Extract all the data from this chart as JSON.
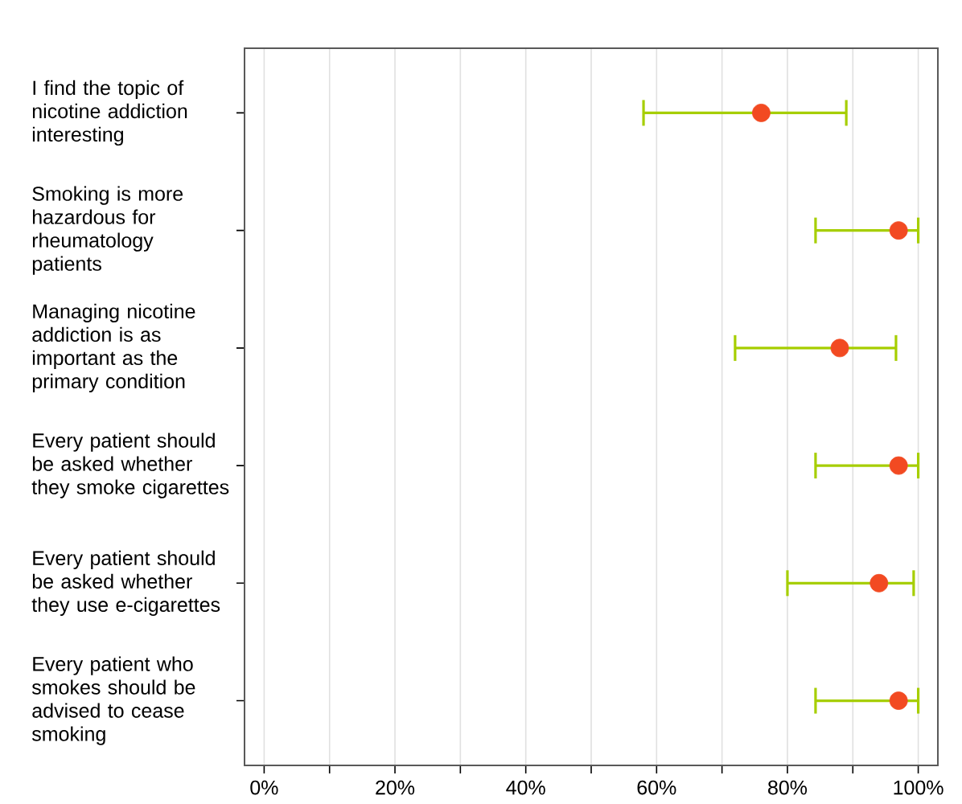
{
  "chart_data": {
    "type": "scatter",
    "categories": [
      "I find the topic of nicotine addiction interesting",
      "Smoking is more hazardous for rheumatology patients",
      "Managing nicotine addiction is as important as the primary condition",
      "Every patient should be asked whether they smoke cigarettes",
      "Every patient should be asked whether they use e-cigarettes",
      "Every patient who smokes should be advised to cease smoking"
    ],
    "orientation": "horizontal",
    "values": [
      76,
      97,
      88,
      97,
      94,
      97
    ],
    "errors": [
      [
        58,
        89
      ],
      [
        84.3,
        100
      ],
      [
        72,
        96.6
      ],
      [
        84.3,
        100
      ],
      [
        80,
        99.3
      ],
      [
        84.3,
        100
      ]
    ],
    "color": "#f24a22",
    "xlim": [
      -3,
      103
    ],
    "xticks": [
      {
        "value": 0,
        "label": "0%"
      },
      {
        "value": 10,
        "label": null
      },
      {
        "value": 20,
        "label": "20%"
      },
      {
        "value": 30,
        "label": null
      },
      {
        "value": 40,
        "label": "40%"
      },
      {
        "value": 50,
        "label": null
      },
      {
        "value": 60,
        "label": "60%"
      },
      {
        "value": 70,
        "label": null
      },
      {
        "value": 80,
        "label": "80%"
      },
      {
        "value": 90,
        "label": null
      },
      {
        "value": 100,
        "label": "100%"
      }
    ],
    "grid": "x"
  }
}
